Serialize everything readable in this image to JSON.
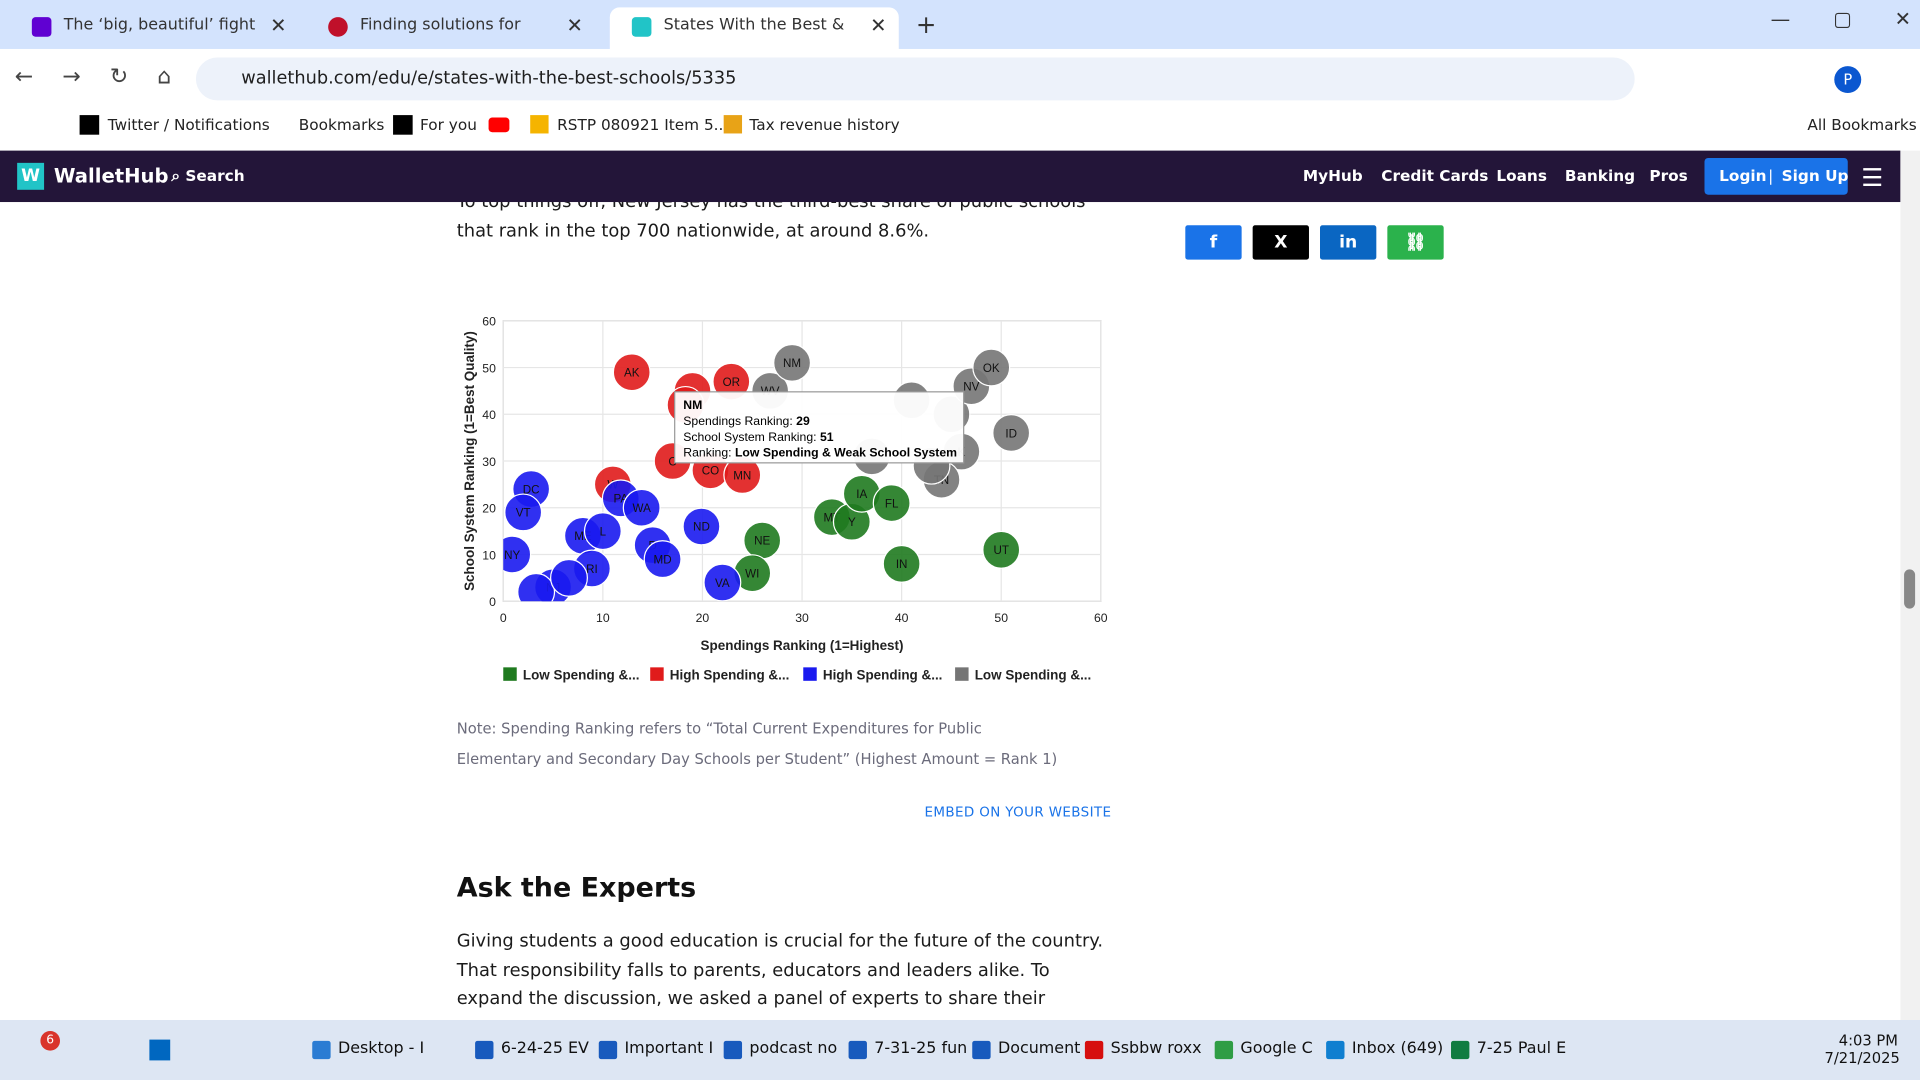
{
  "browser": {
    "tabs": [
      "The ‘big, beautiful’ fight over sc",
      "Finding solutions for safety con",
      "States With the Best & Worst Sc"
    ],
    "url": "wallethub.com/edu/e/states-with-the-best-schools/5335",
    "profile": "P",
    "bookmarks": [
      "Twitter / Notifications",
      "Bookmarks",
      "For you",
      "RSTP 080921 Item 5...",
      "Tax revenue history"
    ],
    "all_bookmarks": "All Bookmarks"
  },
  "site": {
    "logo": "WalletHub",
    "search": "Search",
    "nav": [
      "MyHub",
      "Credit Cards",
      "Loans",
      "Banking",
      "Pros"
    ],
    "login": "Login",
    "signup": "Sign Up"
  },
  "article": {
    "paragraph1": "To top things off, New Jersey has the third-best share of public schools that rank in the top 700 nationwide, at around 8.6%.",
    "note": "Note: Spending Ranking refers to “Total Current Expenditures for Public Elementary and Secondary Day Schools per Student” (Highest Amount = Rank 1)",
    "embed": "EMBED ON YOUR WEBSITE",
    "heading": "Ask the Experts",
    "paragraph2": "Giving students a good education is crucial for the future of the country. That responsibility falls to parents, educators and leaders alike. To expand the discussion, we asked a panel of experts to share their thoughts on the"
  },
  "chart_data": {
    "type": "scatter",
    "x_label": "Spendings Ranking (1=Highest)",
    "y_label": "School System Ranking (1=Best Quality)",
    "xlim": [
      0,
      60
    ],
    "ylim": [
      0,
      60
    ],
    "xticks": [
      0,
      10,
      20,
      30,
      40,
      50,
      60
    ],
    "yticks": [
      0,
      10,
      20,
      30,
      40,
      50,
      60
    ],
    "grid": true,
    "series": [
      {
        "name": "Low Spending &...",
        "color": "#1f7a1f",
        "x": [
          26,
          25,
          33,
          35,
          36,
          39,
          40,
          50
        ],
        "y": [
          13,
          6,
          18,
          17,
          23,
          21,
          8,
          11
        ],
        "labels": [
          "NE",
          "WI",
          "MT",
          "Y",
          "IA",
          "FL",
          "IN",
          "UT"
        ]
      },
      {
        "name": "High Spending &...",
        "color": "#e01b1b",
        "x": [
          12.9,
          22.9,
          19,
          18.3,
          17,
          20.8,
          24,
          11
        ],
        "y": [
          49,
          47,
          45,
          42,
          30,
          28,
          27,
          25
        ],
        "labels": [
          "AK",
          "OR",
          null,
          null,
          "C",
          "CO",
          "MN",
          "W"
        ]
      },
      {
        "name": "High Spending &...",
        "color": "#1a1aef",
        "x": [
          2.8,
          2,
          0.9,
          8,
          10,
          8.9,
          5,
          3.3,
          6.6,
          11.8,
          13.9,
          15,
          16,
          19.9,
          22
        ],
        "y": [
          24,
          19,
          10,
          14,
          15,
          7,
          3,
          2,
          5,
          22,
          20,
          12,
          9,
          16,
          4
        ],
        "labels": [
          "DC",
          "VT",
          "NY",
          "ME",
          "L",
          "RI",
          "NJ",
          null,
          null,
          "PA",
          "WA",
          "D",
          "MD",
          "ND",
          "VA"
        ]
      },
      {
        "name": "Low Spending &...",
        "color": "#757575",
        "x": [
          26.8,
          41,
          45,
          47,
          49,
          51,
          46,
          44,
          37,
          43,
          29
        ],
        "y": [
          45,
          43,
          40,
          46,
          50,
          36,
          32,
          26,
          31,
          29,
          51
        ],
        "labels": [
          "WV",
          null,
          null,
          "NV",
          "OK",
          "ID",
          "K",
          "TN",
          null,
          null,
          "NM"
        ]
      }
    ],
    "tooltip": {
      "title": "NM",
      "rows": [
        {
          "label": "Spendings Ranking:",
          "value": 29
        },
        {
          "label": "School System Ranking:",
          "value": 51
        },
        {
          "label": "Ranking:",
          "value": "Low Spending & Weak School System"
        }
      ]
    }
  },
  "taskbar": {
    "badge": "6",
    "items": [
      "Desktop - I",
      "6-24-25 EV",
      "Important I",
      "podcast no",
      "7-31-25 fun",
      "Document",
      "Ssbbw roxx",
      "Google C",
      "Inbox (649)",
      "7-25 Paul E"
    ],
    "time": "4:03 PM",
    "date": "7/21/2025"
  }
}
